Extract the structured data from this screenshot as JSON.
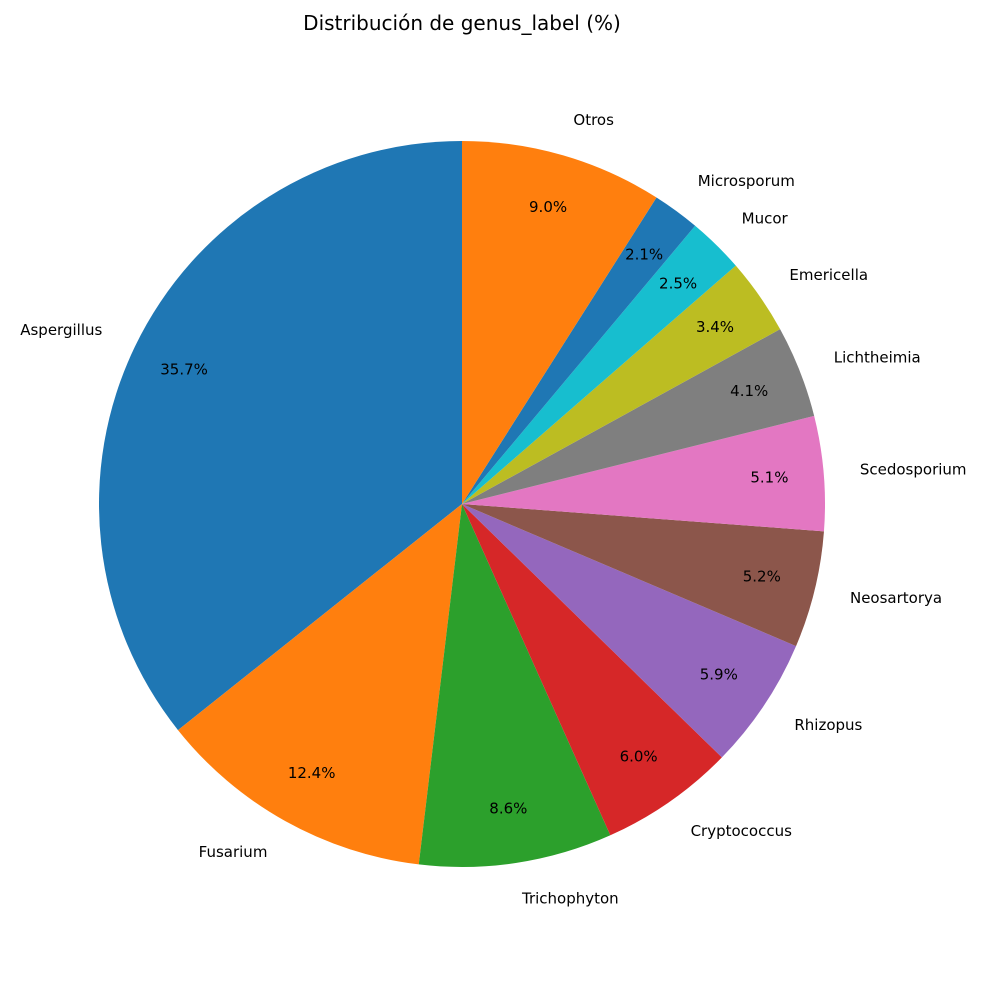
{
  "chart_data": {
    "type": "pie",
    "title": "Distribución de genus_label (%)",
    "start_angle_deg": 90,
    "direction": "counterclockwise",
    "slices": [
      {
        "label": "Aspergillus",
        "value": 35.7,
        "pct_text": "35.7%",
        "color": "#1f77b4"
      },
      {
        "label": "Fusarium",
        "value": 12.4,
        "pct_text": "12.4%",
        "color": "#ff7f0e"
      },
      {
        "label": "Trichophyton",
        "value": 8.6,
        "pct_text": "8.6%",
        "color": "#2ca02c"
      },
      {
        "label": "Cryptococcus",
        "value": 6.0,
        "pct_text": "6.0%",
        "color": "#d62728"
      },
      {
        "label": "Rhizopus",
        "value": 5.9,
        "pct_text": "5.9%",
        "color": "#9467bd"
      },
      {
        "label": "Neosartorya",
        "value": 5.2,
        "pct_text": "5.2%",
        "color": "#8c564b"
      },
      {
        "label": "Scedosporium",
        "value": 5.1,
        "pct_text": "5.1%",
        "color": "#e377c2"
      },
      {
        "label": "Lichtheimia",
        "value": 4.1,
        "pct_text": "4.1%",
        "color": "#7f7f7f"
      },
      {
        "label": "Emericella",
        "value": 3.4,
        "pct_text": "3.4%",
        "color": "#bcbd22"
      },
      {
        "label": "Mucor",
        "value": 2.5,
        "pct_text": "2.5%",
        "color": "#17becf"
      },
      {
        "label": "Microsporum",
        "value": 2.1,
        "pct_text": "2.1%",
        "color": "#1f77b4"
      },
      {
        "label": "Otros",
        "value": 9.0,
        "pct_text": "9.0%",
        "color": "#ff7f0e"
      }
    ]
  }
}
